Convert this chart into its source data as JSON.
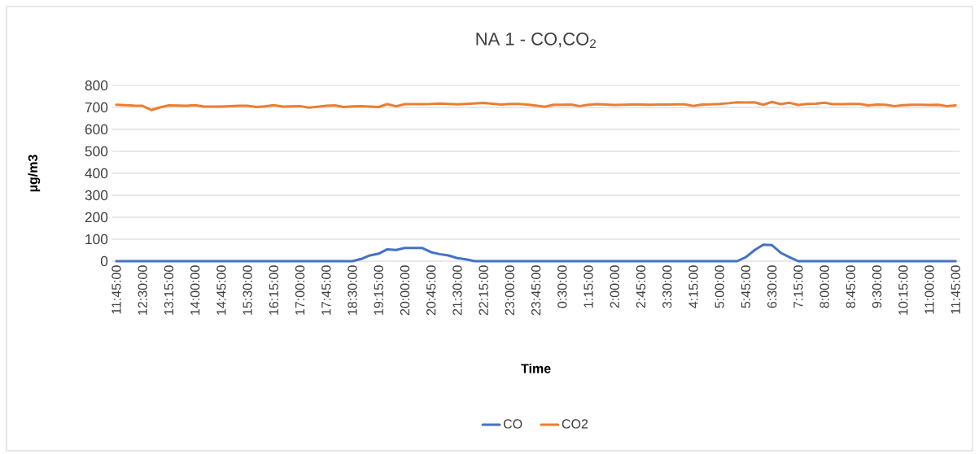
{
  "chart_data": {
    "type": "line",
    "title": "NA 1 - CO,CO$_{2}$",
    "xlabel": "Time",
    "ylabel": "µg/m3",
    "categories": [
      "11:45:00",
      null,
      null,
      "12:30:00",
      null,
      null,
      "13:15:00",
      null,
      null,
      "14:00:00",
      null,
      null,
      "14:45:00",
      null,
      null,
      "15:30:00",
      null,
      null,
      "16:15:00",
      null,
      null,
      "17:00:00",
      null,
      null,
      "17:45:00",
      null,
      null,
      "18:30:00",
      null,
      null,
      "19:15:00",
      null,
      null,
      "20:00:00",
      null,
      null,
      "20:45:00",
      null,
      null,
      "21:30:00",
      null,
      null,
      "22:15:00",
      null,
      null,
      "23:00:00",
      null,
      null,
      "23:45:00",
      null,
      null,
      "0:30:00",
      null,
      null,
      "1:15:00",
      null,
      null,
      "2:00:00",
      null,
      null,
      "2:45:00",
      null,
      null,
      "3:30:00",
      null,
      null,
      "4:15:00",
      null,
      null,
      "5:00:00",
      null,
      null,
      "5:45:00",
      null,
      null,
      "6:30:00",
      null,
      null,
      "7:15:00",
      null,
      null,
      "8:00:00",
      null,
      null,
      "8:45:00",
      null,
      null,
      "9:30:00",
      null,
      null,
      "10:15:00",
      null,
      null,
      "11:00:00",
      null,
      null,
      "11:45:00"
    ],
    "series": [
      {
        "name": "CO",
        "color": "#4472c4",
        "values": [
          0,
          0,
          0,
          0,
          0,
          0,
          0,
          0,
          0,
          0,
          0,
          0,
          0,
          0,
          0,
          0,
          0,
          0,
          0,
          0,
          0,
          0,
          0,
          0,
          0,
          0,
          0,
          0,
          10,
          26,
          34,
          54,
          51,
          60,
          60,
          60,
          41,
          32,
          26,
          14,
          8,
          0,
          0,
          0,
          0,
          0,
          0,
          0,
          0,
          0,
          0,
          0,
          0,
          0,
          0,
          0,
          0,
          0,
          0,
          0,
          0,
          0,
          0,
          0,
          0,
          0,
          0,
          0,
          0,
          0,
          0,
          0,
          18,
          50,
          75,
          73,
          38,
          18,
          0,
          0,
          0,
          0,
          0,
          0,
          0,
          0,
          0,
          0,
          0,
          0,
          0,
          0,
          0,
          0,
          0,
          0,
          0
        ]
      },
      {
        "name": "CO2",
        "color": "#ed7d31",
        "values": [
          712,
          710,
          708,
          707,
          688,
          700,
          709,
          708,
          707,
          710,
          704,
          704,
          704,
          706,
          707,
          707,
          702,
          705,
          710,
          704,
          705,
          706,
          699,
          703,
          707,
          709,
          702,
          705,
          706,
          704,
          702,
          715,
          705,
          715,
          715,
          715,
          716,
          718,
          716,
          714,
          716,
          718,
          720,
          717,
          713,
          716,
          716,
          713,
          708,
          703,
          712,
          712,
          713,
          706,
          712,
          715,
          713,
          711,
          712,
          713,
          713,
          712,
          713,
          713,
          714,
          714,
          707,
          713,
          714,
          716,
          719,
          723,
          722,
          723,
          712,
          725,
          715,
          721,
          711,
          716,
          717,
          721,
          715,
          715,
          716,
          716,
          709,
          713,
          712,
          706,
          710,
          712,
          712,
          711,
          712,
          706,
          709
        ]
      }
    ],
    "ylim": [
      0,
      800
    ],
    "yticks": [
      0,
      100,
      200,
      300,
      400,
      500,
      600,
      700,
      800
    ],
    "grid": "y",
    "legend": "bottom",
    "marker": "none",
    "line_style": "solid"
  }
}
